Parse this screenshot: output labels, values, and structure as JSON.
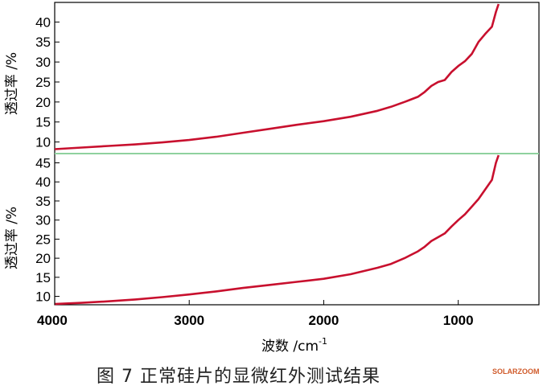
{
  "chart_data": [
    {
      "type": "line",
      "xlim": [
        4000,
        400
      ],
      "ylim": [
        7.5,
        44.5
      ],
      "yticks": [
        "10",
        "15",
        "20",
        "25",
        "30",
        "35",
        "40"
      ],
      "ytick_values": [
        10,
        15,
        20,
        25,
        30,
        35,
        40
      ],
      "ylabel": "透过率 /%",
      "series": [
        {
          "color": "#c8102e",
          "x": [
            4000,
            3800,
            3600,
            3400,
            3200,
            3000,
            2800,
            2600,
            2400,
            2200,
            2000,
            1800,
            1600,
            1500,
            1400,
            1300,
            1250,
            1200,
            1150,
            1100,
            1050,
            1000,
            950,
            900,
            850,
            800,
            750,
            720,
            700
          ],
          "y": [
            8.2,
            8.6,
            9.0,
            9.4,
            9.9,
            10.5,
            11.3,
            12.3,
            13.3,
            14.3,
            15.2,
            16.3,
            17.8,
            18.8,
            20.0,
            21.3,
            22.5,
            24.0,
            25.0,
            25.5,
            27.5,
            29.0,
            30.2,
            32.0,
            35.0,
            37.0,
            38.8,
            42.5,
            44.5
          ]
        }
      ]
    },
    {
      "type": "line",
      "xlim": [
        4000,
        400
      ],
      "ylim": [
        7.8,
        47
      ],
      "yticks": [
        "10",
        "15",
        "20",
        "25",
        "30",
        "35",
        "40",
        "45"
      ],
      "ytick_values": [
        10,
        15,
        20,
        25,
        30,
        35,
        40,
        45
      ],
      "xticks": [
        "4000",
        "3000",
        "2000",
        "1000"
      ],
      "xtick_values": [
        4000,
        3000,
        2000,
        1000
      ],
      "ylabel": "透过率 /%",
      "xlabel": "波数 /cm",
      "xlabel_sup": "-1",
      "series": [
        {
          "color": "#c8102e",
          "x": [
            4000,
            3800,
            3600,
            3400,
            3200,
            3000,
            2800,
            2600,
            2400,
            2200,
            2000,
            1800,
            1600,
            1500,
            1400,
            1300,
            1250,
            1200,
            1150,
            1100,
            1050,
            1000,
            950,
            900,
            850,
            800,
            750,
            720,
            700
          ],
          "y": [
            8.0,
            8.3,
            8.7,
            9.2,
            9.8,
            10.5,
            11.3,
            12.2,
            13.0,
            13.8,
            14.6,
            15.8,
            17.5,
            18.5,
            20.0,
            21.8,
            23.0,
            24.5,
            25.5,
            26.5,
            28.3,
            30.0,
            31.5,
            33.5,
            35.5,
            38.0,
            40.5,
            45.0,
            47.0
          ]
        }
      ]
    }
  ],
  "caption": "图 7  正常硅片的显微红外测试结果",
  "watermark": "SOLARZOOM",
  "colors": {
    "curve": "#c8102e",
    "divider": "#8fd19e",
    "axis": "#000000"
  }
}
